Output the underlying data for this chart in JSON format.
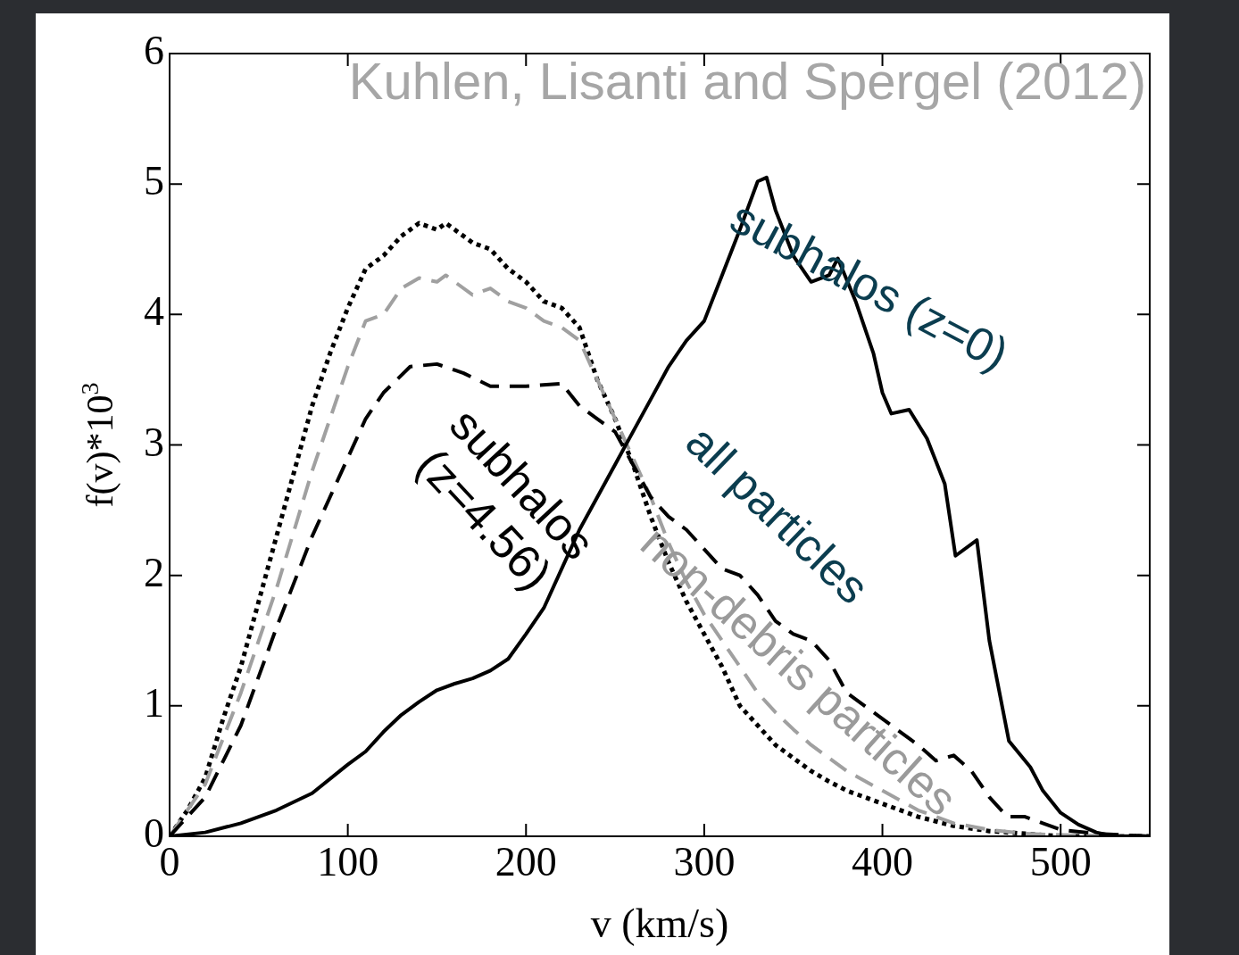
{
  "chart_data": {
    "type": "line",
    "xlabel": "v (km/s)",
    "ylabel": "f(v)*10$^{3}$",
    "xlim": [
      0,
      550
    ],
    "xticks": [
      0,
      100,
      200,
      300,
      400,
      500
    ],
    "ylim": [
      0,
      6
    ],
    "yticks": [
      0,
      1,
      2,
      3,
      4,
      5,
      6
    ],
    "grid": false,
    "legend": false,
    "marker": "none",
    "annotations": [
      "Kuhlen, Lisanti and Spergel (2012)"
    ],
    "series": [
      {
        "name": "subhalos (z=0)",
        "color": "#000000",
        "line_style": "solid",
        "x": [
          0,
          20,
          40,
          60,
          80,
          100,
          110,
          120,
          130,
          140,
          150,
          160,
          170,
          180,
          190,
          200,
          210,
          220,
          230,
          240,
          250,
          260,
          270,
          280,
          290,
          300,
          310,
          320,
          330,
          335,
          340,
          350,
          360,
          370,
          375,
          385,
          395,
          400,
          405,
          415,
          425,
          435,
          441,
          453,
          460,
          471,
          483,
          490,
          500,
          510,
          520,
          530,
          550
        ],
        "values": [
          0,
          0.03,
          0.1,
          0.2,
          0.33,
          0.55,
          0.65,
          0.8,
          0.93,
          1.03,
          1.12,
          1.17,
          1.21,
          1.27,
          1.36,
          1.55,
          1.75,
          2.05,
          2.35,
          2.6,
          2.85,
          3.1,
          3.35,
          3.6,
          3.8,
          3.95,
          4.3,
          4.65,
          5.02,
          5.05,
          4.8,
          4.45,
          4.25,
          4.3,
          4.43,
          4.1,
          3.7,
          3.4,
          3.24,
          3.27,
          3.05,
          2.7,
          2.15,
          2.27,
          1.5,
          0.73,
          0.53,
          0.35,
          0.18,
          0.09,
          0.03,
          0,
          0
        ]
      },
      {
        "name": "all particles",
        "color": "#000000",
        "line_style": "dashed",
        "x": [
          0,
          20,
          40,
          60,
          80,
          100,
          110,
          120,
          135,
          150,
          165,
          180,
          200,
          220,
          230,
          240,
          250,
          260,
          270,
          280,
          290,
          300,
          310,
          320,
          330,
          340,
          350,
          360,
          370,
          380,
          390,
          400,
          410,
          420,
          430,
          440,
          450,
          460,
          470,
          480,
          490,
          500,
          520,
          550
        ],
        "values": [
          0,
          0.3,
          0.85,
          1.6,
          2.3,
          2.9,
          3.2,
          3.4,
          3.6,
          3.62,
          3.55,
          3.45,
          3.45,
          3.47,
          3.3,
          3.2,
          3.1,
          2.85,
          2.6,
          2.45,
          2.35,
          2.2,
          2.05,
          2.0,
          1.85,
          1.65,
          1.55,
          1.5,
          1.35,
          1.1,
          1.0,
          0.9,
          0.8,
          0.7,
          0.58,
          0.62,
          0.5,
          0.3,
          0.15,
          0.15,
          0.1,
          0.05,
          0.02,
          0
        ]
      },
      {
        "name": "non-debris particles",
        "color": "#a0a0a0",
        "line_style": "dashed",
        "x": [
          0,
          20,
          40,
          60,
          80,
          100,
          110,
          120,
          130,
          140,
          150,
          155,
          170,
          180,
          190,
          200,
          210,
          220,
          230,
          240,
          250,
          260,
          270,
          280,
          290,
          300,
          310,
          320,
          330,
          340,
          350,
          360,
          370,
          380,
          400,
          420,
          440,
          460,
          480,
          500,
          550
        ],
        "values": [
          0,
          0.4,
          1.1,
          1.9,
          2.8,
          3.6,
          3.95,
          4.0,
          4.2,
          4.28,
          4.25,
          4.3,
          4.15,
          4.2,
          4.1,
          4.05,
          3.95,
          3.9,
          3.8,
          3.5,
          3.2,
          2.9,
          2.6,
          2.25,
          1.95,
          1.7,
          1.5,
          1.3,
          1.1,
          0.95,
          0.82,
          0.7,
          0.6,
          0.5,
          0.35,
          0.2,
          0.1,
          0.05,
          0.02,
          0.01,
          0
        ]
      },
      {
        "name": "subhalos (z=4.56)",
        "color": "#000000",
        "line_style": "dotted",
        "x": [
          0,
          10,
          20,
          30,
          40,
          50,
          60,
          70,
          80,
          90,
          100,
          110,
          120,
          130,
          140,
          150,
          155,
          160,
          170,
          180,
          190,
          200,
          210,
          220,
          230,
          240,
          250,
          260,
          270,
          280,
          290,
          300,
          310,
          320,
          330,
          340,
          350,
          360,
          370,
          380,
          400,
          420,
          440,
          460,
          480,
          500,
          550
        ],
        "values": [
          0,
          0.2,
          0.45,
          0.9,
          1.3,
          1.8,
          2.3,
          2.8,
          3.3,
          3.7,
          4.05,
          4.35,
          4.45,
          4.6,
          4.7,
          4.65,
          4.7,
          4.65,
          4.55,
          4.5,
          4.35,
          4.25,
          4.1,
          4.05,
          3.9,
          3.5,
          3.2,
          2.85,
          2.45,
          2.1,
          1.8,
          1.55,
          1.3,
          1.0,
          0.85,
          0.7,
          0.6,
          0.5,
          0.42,
          0.35,
          0.25,
          0.15,
          0.08,
          0.04,
          0.02,
          0,
          0
        ]
      }
    ]
  }
}
